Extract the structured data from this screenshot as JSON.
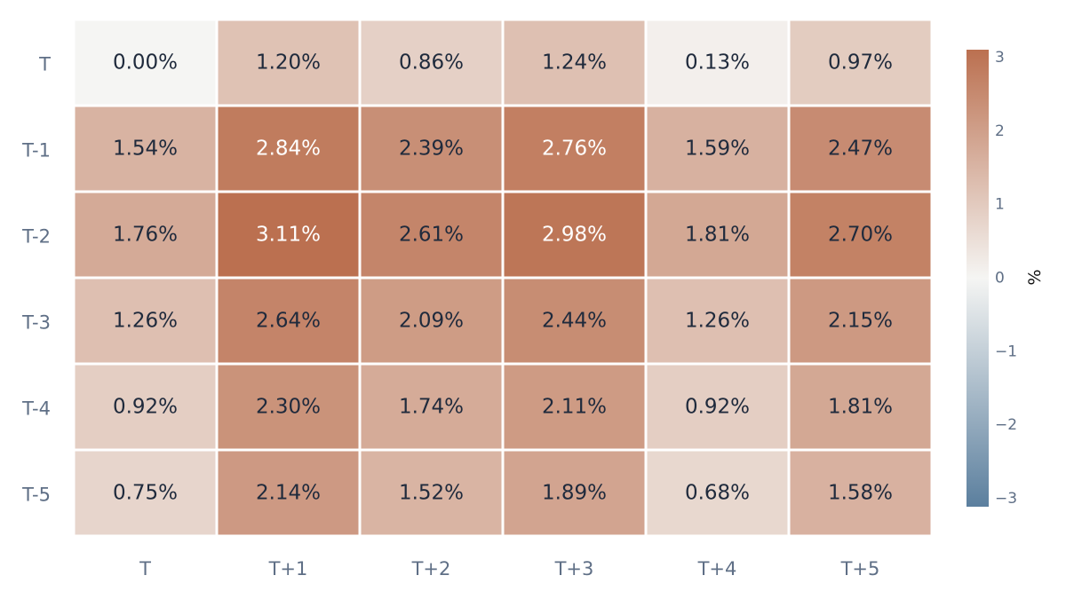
{
  "chart_data": {
    "type": "heatmap",
    "title": "",
    "xlabel": "",
    "ylabel": "",
    "x_categories": [
      "T",
      "T+1",
      "T+2",
      "T+3",
      "T+4",
      "T+5"
    ],
    "y_categories": [
      "T",
      "T-1",
      "T-2",
      "T-3",
      "T-4",
      "T-5"
    ],
    "values": [
      [
        0.0,
        1.2,
        0.86,
        1.24,
        0.13,
        0.97
      ],
      [
        1.54,
        2.84,
        2.39,
        2.76,
        1.59,
        2.47
      ],
      [
        1.76,
        3.11,
        2.61,
        2.98,
        1.81,
        2.7
      ],
      [
        1.26,
        2.64,
        2.09,
        2.44,
        1.26,
        2.15
      ],
      [
        0.92,
        2.3,
        1.74,
        2.11,
        0.92,
        1.81
      ],
      [
        0.75,
        2.14,
        1.52,
        1.89,
        0.68,
        1.58
      ]
    ],
    "value_format": "percent",
    "value_suffix": "%",
    "color_scale": {
      "min": -3.11,
      "max": 3.11,
      "low_color": "#5b7f9e",
      "mid_color": "#f5f5f3",
      "high_color": "#bb7050",
      "title": "%",
      "ticks": [
        3,
        2,
        1,
        0,
        -1,
        -2,
        -3
      ],
      "tick_labels": [
        "3",
        "2",
        "1",
        "0",
        "−1",
        "−2",
        "−3"
      ]
    },
    "text_color_dark": "#1f2a3c",
    "text_color_light": "#ffffff",
    "grid": false,
    "legend": "right"
  }
}
